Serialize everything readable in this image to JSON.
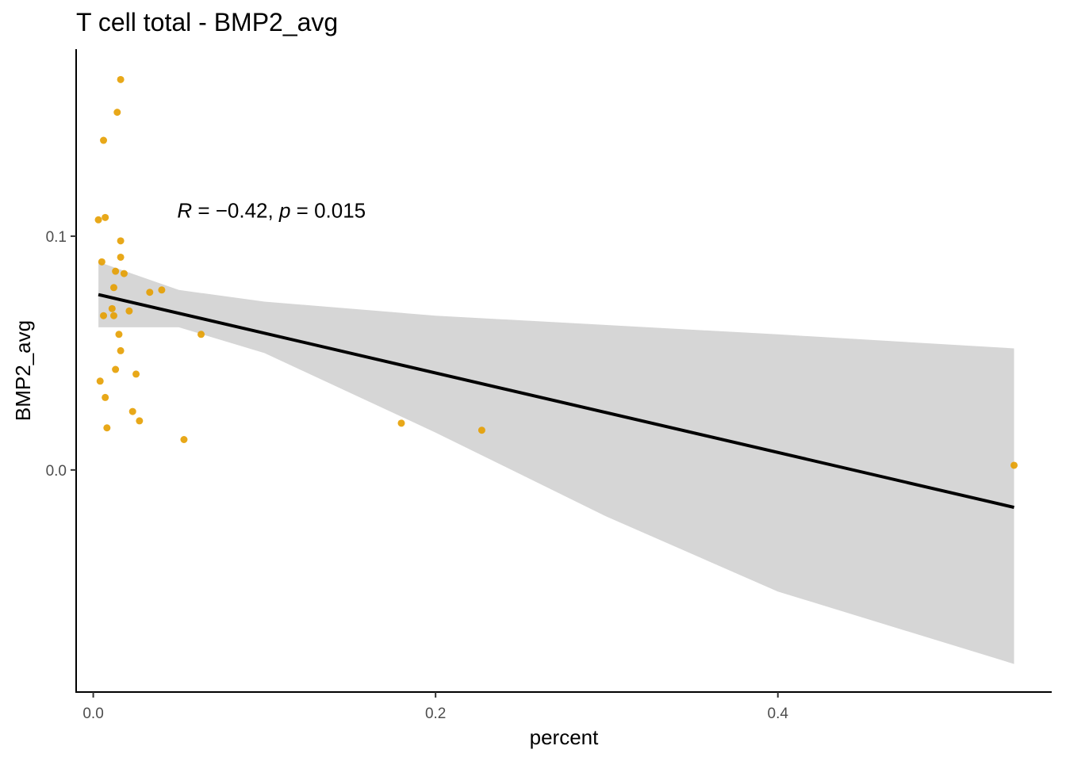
{
  "chart_data": {
    "type": "scatter",
    "title": "T cell total - BMP2_avg",
    "xlabel": "percent",
    "ylabel": "BMP2_avg",
    "xlim": [
      -0.01,
      0.56
    ],
    "ylim": [
      -0.095,
      0.18
    ],
    "x_ticks": [
      0.0,
      0.2,
      0.4
    ],
    "x_tick_labels": [
      "0.0",
      "0.2",
      "0.4"
    ],
    "y_ticks": [
      0.0,
      0.1
    ],
    "y_tick_labels": [
      "0.0",
      "0.1"
    ],
    "grid": false,
    "point_color": "#E69F00",
    "line_color": "#000000",
    "band_color": "#D6D6D6",
    "annotation": {
      "r_symbol": "R",
      "r_text": " = −0.42, ",
      "p_symbol": "p",
      "p_text": " = 0.015",
      "x": 0.049,
      "y": 0.111
    },
    "points": [
      {
        "x": 0.016,
        "y": 0.167
      },
      {
        "x": 0.014,
        "y": 0.153
      },
      {
        "x": 0.006,
        "y": 0.141
      },
      {
        "x": 0.003,
        "y": 0.107
      },
      {
        "x": 0.007,
        "y": 0.108
      },
      {
        "x": 0.016,
        "y": 0.098
      },
      {
        "x": 0.005,
        "y": 0.089
      },
      {
        "x": 0.016,
        "y": 0.091
      },
      {
        "x": 0.013,
        "y": 0.085
      },
      {
        "x": 0.018,
        "y": 0.084
      },
      {
        "x": 0.012,
        "y": 0.078
      },
      {
        "x": 0.033,
        "y": 0.076
      },
      {
        "x": 0.04,
        "y": 0.077
      },
      {
        "x": 0.011,
        "y": 0.069
      },
      {
        "x": 0.021,
        "y": 0.068
      },
      {
        "x": 0.006,
        "y": 0.066
      },
      {
        "x": 0.012,
        "y": 0.066
      },
      {
        "x": 0.015,
        "y": 0.058
      },
      {
        "x": 0.063,
        "y": 0.058
      },
      {
        "x": 0.016,
        "y": 0.051
      },
      {
        "x": 0.013,
        "y": 0.043
      },
      {
        "x": 0.025,
        "y": 0.041
      },
      {
        "x": 0.004,
        "y": 0.038
      },
      {
        "x": 0.007,
        "y": 0.031
      },
      {
        "x": 0.023,
        "y": 0.025
      },
      {
        "x": 0.027,
        "y": 0.021
      },
      {
        "x": 0.008,
        "y": 0.018
      },
      {
        "x": 0.053,
        "y": 0.013
      },
      {
        "x": 0.18,
        "y": 0.02
      },
      {
        "x": 0.227,
        "y": 0.017
      },
      {
        "x": 0.538,
        "y": 0.002
      }
    ],
    "fit_line": {
      "x": [
        0.003,
        0.538
      ],
      "y": [
        0.075,
        -0.016
      ]
    },
    "confidence_band": {
      "x": [
        0.003,
        0.05,
        0.1,
        0.2,
        0.3,
        0.4,
        0.538
      ],
      "upper": [
        0.089,
        0.077,
        0.072,
        0.066,
        0.062,
        0.058,
        0.052
      ],
      "lower": [
        0.061,
        0.061,
        0.05,
        0.016,
        -0.02,
        -0.052,
        -0.083
      ]
    }
  }
}
